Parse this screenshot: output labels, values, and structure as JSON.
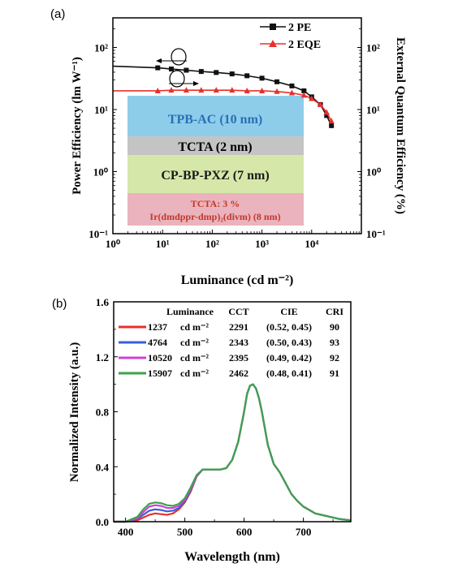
{
  "panel_a_label": "(a)",
  "panel_b_label": "(b)",
  "chart_data": [
    {
      "type": "scatter",
      "xlabel": "Luminance (cd m⁻²)",
      "ylabel": "Power Efficiency (lm W⁻¹)",
      "ylabel_right": "External Quantum Efficiency (%)",
      "x_scale": "log",
      "y_scale": "log",
      "xlim": [
        1,
        100000
      ],
      "ylim": [
        0.1,
        300
      ],
      "x_ticks": [
        "10⁰",
        "10¹",
        "10²",
        "10³",
        "10⁴"
      ],
      "y_ticks": [
        "10⁻¹",
        "10⁰",
        "10¹",
        "10²"
      ],
      "y_ticks_right": [
        "10⁻¹",
        "10⁰",
        "10¹",
        "10²"
      ],
      "legend": [
        "2 PE",
        "2 EQE"
      ],
      "legend_position": "top-right",
      "series": [
        {
          "name": "2 PE",
          "color": "#111111",
          "marker": "square",
          "x": [
            1,
            8,
            15,
            30,
            60,
            120,
            250,
            500,
            1000,
            2000,
            4000,
            7000,
            10000,
            15000,
            20000,
            25000
          ],
          "y": [
            50,
            47,
            45,
            43,
            41,
            39.5,
            37.5,
            35,
            32,
            28,
            24,
            20,
            16,
            12,
            8,
            5.5
          ]
        },
        {
          "name": "2 EQE",
          "color": "#e8302c",
          "marker": "triangle",
          "x": [
            1,
            8,
            15,
            30,
            60,
            120,
            250,
            500,
            1000,
            2000,
            4000,
            7000,
            10000,
            15000,
            20000,
            25000
          ],
          "y": [
            20,
            20,
            20.5,
            20.5,
            20.5,
            20.5,
            20.5,
            20,
            20,
            19.5,
            18.5,
            17,
            15,
            12,
            9,
            6.5
          ]
        }
      ],
      "device_layers": [
        {
          "label": "TPB-AC (10 nm)",
          "color": "#8ecdea"
        },
        {
          "label": "TCTA (2 nm)",
          "color": "#c4c4c4"
        },
        {
          "label": "CP-BP-PXZ (7 nm)",
          "color": "#d5e8a9"
        },
        {
          "label_top": "TCTA: 3 %",
          "label_bottom": "Ir(dmdppr-dmp)₂(divm) (8 nm)",
          "color": "#ebb3bd"
        }
      ],
      "layer_text_colors": {
        "tpb": "#2a6fb5",
        "tcta": "#000000",
        "cp": "#1a1a1a",
        "ir": "#c0392b"
      }
    },
    {
      "type": "line",
      "xlabel": "Wavelength (nm)",
      "ylabel": "Normalized Intensity (a.u.)",
      "xlim": [
        380,
        780
      ],
      "ylim": [
        0,
        1.6
      ],
      "x_ticks": [
        400,
        500,
        600,
        700
      ],
      "y_ticks": [
        "0.0",
        "0.4",
        "0.8",
        "1.2",
        "1.6"
      ],
      "table_header": {
        "luminance": "Luminance",
        "cct": "CCT",
        "cie": "CIE",
        "cri": "CRI"
      },
      "unit": "cd m⁻²",
      "x": [
        380,
        400,
        420,
        430,
        440,
        450,
        460,
        470,
        480,
        490,
        500,
        510,
        520,
        530,
        540,
        550,
        560,
        570,
        580,
        590,
        600,
        605,
        610,
        615,
        620,
        625,
        630,
        640,
        650,
        660,
        670,
        680,
        690,
        700,
        720,
        740,
        760,
        780
      ],
      "series": [
        {
          "name": "1237",
          "cct": "2291",
          "cie": "(0.52, 0.45)",
          "cri": "90",
          "color": "#e8302c",
          "values": [
            0,
            0,
            0.01,
            0.03,
            0.05,
            0.06,
            0.055,
            0.05,
            0.06,
            0.09,
            0.14,
            0.22,
            0.33,
            0.38,
            0.38,
            0.38,
            0.38,
            0.39,
            0.45,
            0.58,
            0.8,
            0.93,
            0.99,
            1.0,
            0.97,
            0.9,
            0.8,
            0.56,
            0.42,
            0.36,
            0.28,
            0.2,
            0.15,
            0.11,
            0.06,
            0.04,
            0.02,
            0.01
          ]
        },
        {
          "name": "4764",
          "cct": "2343",
          "cie": "(0.50, 0.43)",
          "cri": "93",
          "color": "#3a5fd9",
          "values": [
            0,
            0,
            0.02,
            0.05,
            0.08,
            0.09,
            0.085,
            0.075,
            0.08,
            0.1,
            0.15,
            0.23,
            0.33,
            0.38,
            0.38,
            0.38,
            0.38,
            0.39,
            0.45,
            0.58,
            0.8,
            0.93,
            0.99,
            1.0,
            0.97,
            0.9,
            0.8,
            0.56,
            0.42,
            0.36,
            0.28,
            0.2,
            0.15,
            0.11,
            0.06,
            0.04,
            0.02,
            0.01
          ]
        },
        {
          "name": "10520",
          "cct": "2395",
          "cie": "(0.49, 0.42)",
          "cri": "92",
          "color": "#d23fd6",
          "values": [
            0,
            0,
            0.025,
            0.07,
            0.11,
            0.12,
            0.115,
            0.1,
            0.1,
            0.115,
            0.16,
            0.24,
            0.33,
            0.38,
            0.38,
            0.38,
            0.38,
            0.39,
            0.45,
            0.58,
            0.8,
            0.93,
            0.99,
            1.0,
            0.97,
            0.9,
            0.8,
            0.56,
            0.42,
            0.36,
            0.28,
            0.2,
            0.15,
            0.11,
            0.06,
            0.04,
            0.02,
            0.01
          ]
        },
        {
          "name": "15907",
          "cct": "2462",
          "cie": "(0.48, 0.41)",
          "cri": "91",
          "color": "#3aa34a",
          "values": [
            0,
            0,
            0.035,
            0.09,
            0.13,
            0.14,
            0.135,
            0.12,
            0.115,
            0.13,
            0.17,
            0.25,
            0.34,
            0.38,
            0.38,
            0.38,
            0.38,
            0.39,
            0.45,
            0.58,
            0.8,
            0.93,
            0.99,
            1.0,
            0.97,
            0.9,
            0.8,
            0.56,
            0.42,
            0.36,
            0.28,
            0.2,
            0.15,
            0.11,
            0.06,
            0.04,
            0.02,
            0.01
          ]
        }
      ]
    }
  ]
}
